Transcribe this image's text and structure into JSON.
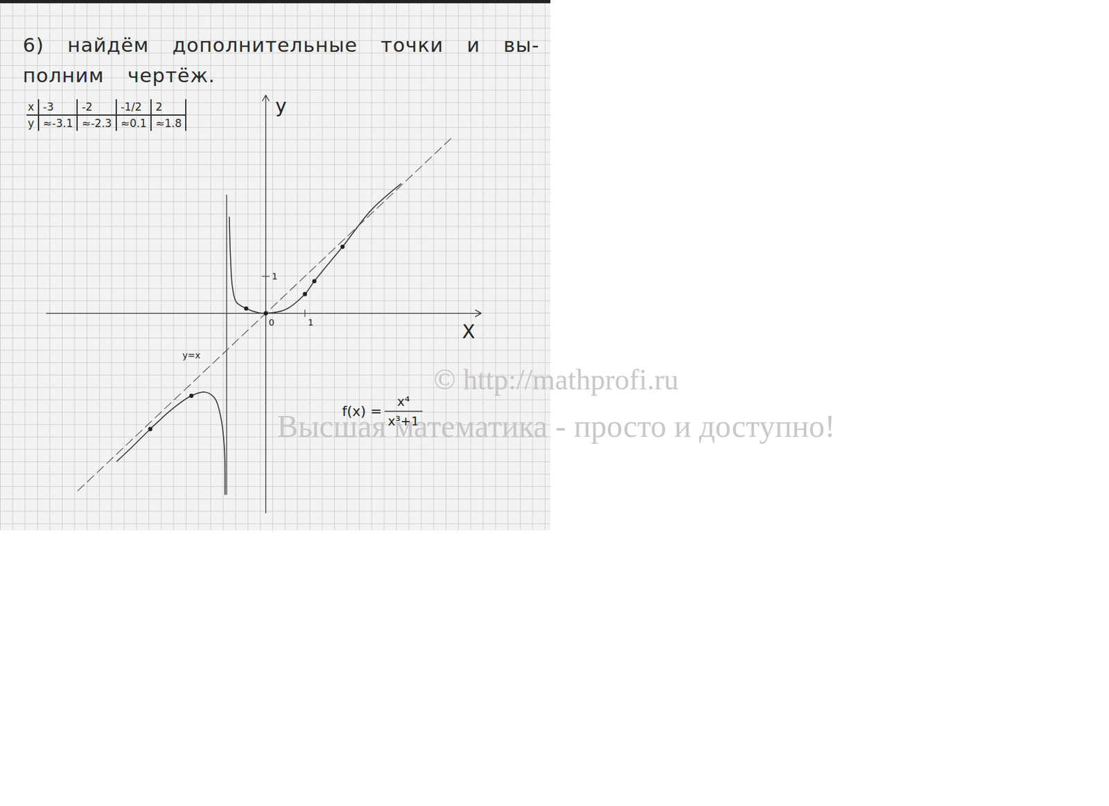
{
  "header": {
    "lines": [
      "6) найдём дополнительные точки и вы-",
      "полним чертёж."
    ]
  },
  "table": {
    "rows": [
      [
        "x",
        "-3",
        "-2",
        "-1/2",
        "2"
      ],
      [
        "y",
        "≈-3.1",
        "≈-2.3",
        "≈0.1",
        "≈1.8"
      ]
    ]
  },
  "chart_data": {
    "type": "line",
    "x_label": "X",
    "y_label": "y",
    "xlim": [
      -5.6,
      5.5
    ],
    "ylim": [
      -5.4,
      5.9
    ],
    "xticks": [
      0,
      1
    ],
    "yticks": [
      1
    ],
    "grid": false,
    "series": [
      {
        "type": "line",
        "color": "#333333",
        "line_style": "solid",
        "marker": "none",
        "x": [
          -3.8,
          -3.4,
          -2.95,
          -2.4,
          -1.9,
          -1.55,
          -1.3,
          -1.15,
          -1.06,
          -1.04
        ],
        "values": [
          -4.0,
          -3.6,
          -3.13,
          -2.6,
          -2.23,
          -2.13,
          -2.3,
          -2.8,
          -3.6,
          -4.9
        ]
      },
      {
        "type": "line",
        "color": "#333333",
        "line_style": "solid",
        "marker": "none",
        "x": [
          -0.93,
          -0.9,
          -0.85,
          -0.75,
          -0.5,
          -0.2,
          0,
          0.5,
          1,
          1.24,
          1.96,
          2.7,
          3.45
        ],
        "values": [
          2.6,
          1.5,
          0.7,
          0.3,
          0.13,
          0.02,
          0,
          0.1,
          0.52,
          0.87,
          1.8,
          2.8,
          3.5
        ]
      },
      {
        "type": "line",
        "color": "#555555",
        "line_style": "dashed",
        "marker": "none",
        "x": [
          -4.8,
          4.8
        ],
        "values": [
          -4.8,
          4.8
        ]
      },
      {
        "type": "line",
        "color": "#555555",
        "line_style": "solid",
        "marker": "none",
        "x": [
          -1.0,
          -1.0
        ],
        "values": [
          -4.9,
          3.2
        ]
      },
      {
        "type": "scatter",
        "color": "#222222",
        "marker": "dot",
        "x": [
          -2.95,
          -1.9,
          -0.5,
          0,
          1,
          1.24,
          1.96
        ],
        "values": [
          -3.13,
          -2.23,
          0.13,
          0,
          0.52,
          0.87,
          1.8
        ]
      }
    ],
    "annotations": [
      {
        "text": "y=x",
        "x": -1.9,
        "y": -1.15
      }
    ],
    "formula": {
      "lhs": "f(x) =",
      "numerator": "x⁴",
      "denominator": "x³+1",
      "x": 3.0,
      "y": -2.65
    }
  },
  "watermark": [
    "© http://mathprofi.ru",
    "Высшая математика - просто и доступно!"
  ]
}
